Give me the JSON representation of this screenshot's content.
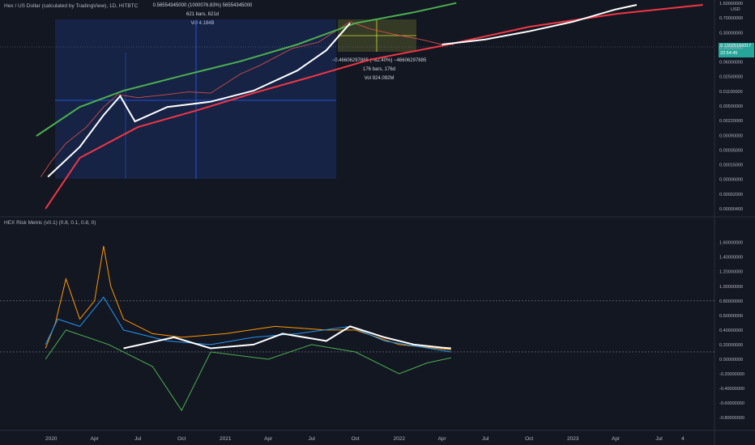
{
  "header": {
    "title": "Hex / US Dollar (calculated by TradingView), 1D, HITBTC",
    "indicator_title": "HEX Risk Metric (v0.1) (0.8, 0.1, 0.8, 0)",
    "currency": "USD"
  },
  "measure_long": {
    "line1": "0.56554345000 (1000076.83%) 56554345000",
    "line2": "621 bars, 621d",
    "line3": "Vol 4.184B"
  },
  "measure_short": {
    "line1": "−0.46606297885 (−82.40%) −46606297885",
    "line2": "176 bars, 176d",
    "line3": "Vol 924.092M"
  },
  "price_badge": {
    "price": "0.13025184317",
    "time": "22:54:45"
  },
  "colors": {
    "background": "#131722",
    "upper_band": "#4caf50",
    "lower_band": "#f23645",
    "trend_curve": "#ffffff",
    "measure_long": "#2962ff",
    "measure_short": "#cddc39",
    "price_badge": "#26a69a",
    "risk_orange": "#ff9800",
    "risk_blue": "#2196f3",
    "risk_green": "#4caf50",
    "risk_cyan": "#26c6da",
    "risk_yellow": "#cddc39"
  },
  "chart_data": [
    {
      "type": "line",
      "name": "price",
      "scale": "log",
      "x_axis_labels": [
        "2020",
        "Apr",
        "Jul",
        "Oct",
        "2021",
        "Apr",
        "Jul",
        "Oct",
        "2022",
        "Apr",
        "Jul",
        "Oct",
        "2023",
        "Apr",
        "Jul",
        "4"
      ],
      "y_tick_labels": [
        "1.60000000",
        "0.70000000",
        "0.30000000",
        "0.14000000",
        "0.06000000",
        "0.02500000",
        "0.01100000",
        "0.00500000",
        "0.00220000",
        "0.00090000",
        "0.00035000",
        "0.00015000",
        "0.00006000",
        "0.00002000",
        "0.00000400"
      ],
      "ylim": [
        4e-06,
        1.6
      ],
      "price_points": [
        {
          "x": "2019-12-10",
          "y": 3e-05
        },
        {
          "x": "2020-01-01",
          "y": 8e-05
        },
        {
          "x": "2020-02-01",
          "y": 0.00025
        },
        {
          "x": "2020-03-15",
          "y": 0.0007
        },
        {
          "x": "2020-04-20",
          "y": 0.0025
        },
        {
          "x": "2020-05-20",
          "y": 0.0055
        },
        {
          "x": "2020-07-01",
          "y": 0.0045
        },
        {
          "x": "2020-09-01",
          "y": 0.0055
        },
        {
          "x": "2020-10-15",
          "y": 0.0065
        },
        {
          "x": "2020-12-01",
          "y": 0.006
        },
        {
          "x": "2021-02-01",
          "y": 0.02
        },
        {
          "x": "2021-03-15",
          "y": 0.035
        },
        {
          "x": "2021-05-20",
          "y": 0.1
        },
        {
          "x": "2021-07-15",
          "y": 0.15
        },
        {
          "x": "2021-09-20",
          "y": 0.55
        },
        {
          "x": "2021-11-01",
          "y": 0.35
        },
        {
          "x": "2021-12-20",
          "y": 0.25
        },
        {
          "x": "2022-02-15",
          "y": 0.18
        },
        {
          "x": "2022-04-01",
          "y": 0.13
        },
        {
          "x": "2022-04-25",
          "y": 0.13
        }
      ],
      "upper_band": [
        {
          "x": "2019-12-01",
          "y": 0.0004
        },
        {
          "x": "2020-03-01",
          "y": 0.0025
        },
        {
          "x": "2020-06-01",
          "y": 0.007
        },
        {
          "x": "2020-10-01",
          "y": 0.018
        },
        {
          "x": "2021-02-01",
          "y": 0.045
        },
        {
          "x": "2021-06-01",
          "y": 0.13
        },
        {
          "x": "2021-10-01",
          "y": 0.5
        },
        {
          "x": "2022-02-01",
          "y": 1.0
        },
        {
          "x": "2022-05-01",
          "y": 1.8
        }
      ],
      "lower_band": [
        {
          "x": "2019-12-20",
          "y": 4e-06
        },
        {
          "x": "2020-03-01",
          "y": 0.0001
        },
        {
          "x": "2020-07-01",
          "y": 0.0007
        },
        {
          "x": "2020-11-01",
          "y": 0.002
        },
        {
          "x": "2021-03-01",
          "y": 0.006
        },
        {
          "x": "2021-07-01",
          "y": 0.017
        },
        {
          "x": "2021-11-01",
          "y": 0.05
        },
        {
          "x": "2022-04-01",
          "y": 0.12
        },
        {
          "x": "2022-10-01",
          "y": 0.4
        },
        {
          "x": "2023-04-01",
          "y": 0.9
        },
        {
          "x": "2023-10-01",
          "y": 1.6
        }
      ],
      "trend_curve": [
        {
          "x": "2019-12-25",
          "y": 3e-05
        },
        {
          "x": "2020-03-01",
          "y": 0.0002
        },
        {
          "x": "2020-04-20",
          "y": 0.0015
        },
        {
          "x": "2020-05-25",
          "y": 0.005
        },
        {
          "x": "2020-06-25",
          "y": 0.001
        },
        {
          "x": "2020-09-01",
          "y": 0.0025
        },
        {
          "x": "2020-12-01",
          "y": 0.0035
        },
        {
          "x": "2021-03-01",
          "y": 0.007
        },
        {
          "x": "2021-06-01",
          "y": 0.025
        },
        {
          "x": "2021-08-01",
          "y": 0.09
        },
        {
          "x": "2021-09-20",
          "y": 0.5
        }
      ],
      "trend_curve_2": [
        {
          "x": "2022-04-01",
          "y": 0.13
        },
        {
          "x": "2022-07-01",
          "y": 0.18
        },
        {
          "x": "2022-10-01",
          "y": 0.3
        },
        {
          "x": "2023-01-01",
          "y": 0.55
        },
        {
          "x": "2023-04-01",
          "y": 1.2
        },
        {
          "x": "2023-05-15",
          "y": 1.6
        }
      ]
    },
    {
      "type": "line",
      "name": "risk_metric",
      "y_tick_labels": [
        "1.60000000",
        "1.40000000",
        "1.20000000",
        "1.00000000",
        "0.80000000",
        "0.60000000",
        "0.40000000",
        "0.20000000",
        "0.00000000",
        "-0.20000000",
        "-0.40000000",
        "-0.60000000",
        "-0.80000000"
      ],
      "ylim": [
        -0.92,
        1.74
      ],
      "hlines": [
        0.8,
        0.1
      ],
      "series": [
        {
          "color": "#ff9800",
          "points": [
            {
              "x": "2019-12-20",
              "y": 0.15
            },
            {
              "x": "2020-01-10",
              "y": 0.5
            },
            {
              "x": "2020-02-01",
              "y": 1.1
            },
            {
              "x": "2020-03-01",
              "y": 0.55
            },
            {
              "x": "2020-04-01",
              "y": 0.8
            },
            {
              "x": "2020-04-20",
              "y": 1.55
            },
            {
              "x": "2020-05-05",
              "y": 1.0
            },
            {
              "x": "2020-06-01",
              "y": 0.55
            },
            {
              "x": "2020-08-01",
              "y": 0.35
            },
            {
              "x": "2020-10-01",
              "y": 0.3
            },
            {
              "x": "2021-01-01",
              "y": 0.35
            },
            {
              "x": "2021-04-15",
              "y": 0.45
            },
            {
              "x": "2021-08-01",
              "y": 0.4
            },
            {
              "x": "2021-10-01",
              "y": 0.4
            },
            {
              "x": "2022-01-01",
              "y": 0.2
            },
            {
              "x": "2022-04-20",
              "y": 0.13
            }
          ]
        },
        {
          "color": "#2196f3",
          "points": [
            {
              "x": "2019-12-20",
              "y": 0.2
            },
            {
              "x": "2020-01-15",
              "y": 0.55
            },
            {
              "x": "2020-03-01",
              "y": 0.45
            },
            {
              "x": "2020-04-20",
              "y": 0.85
            },
            {
              "x": "2020-06-01",
              "y": 0.4
            },
            {
              "x": "2020-09-01",
              "y": 0.25
            },
            {
              "x": "2020-12-01",
              "y": 0.2
            },
            {
              "x": "2021-03-01",
              "y": 0.3
            },
            {
              "x": "2021-06-01",
              "y": 0.35
            },
            {
              "x": "2021-09-20",
              "y": 0.45
            },
            {
              "x": "2021-12-01",
              "y": 0.25
            },
            {
              "x": "2022-04-20",
              "y": 0.1
            }
          ]
        },
        {
          "color": "#4caf50",
          "points": [
            {
              "x": "2019-12-20",
              "y": 0.0
            },
            {
              "x": "2020-02-01",
              "y": 0.4
            },
            {
              "x": "2020-05-01",
              "y": 0.2
            },
            {
              "x": "2020-08-01",
              "y": -0.1
            },
            {
              "x": "2020-10-01",
              "y": -0.7
            },
            {
              "x": "2020-12-01",
              "y": 0.1
            },
            {
              "x": "2021-04-01",
              "y": 0.0
            },
            {
              "x": "2021-07-01",
              "y": 0.2
            },
            {
              "x": "2021-10-01",
              "y": 0.1
            },
            {
              "x": "2022-01-01",
              "y": -0.2
            },
            {
              "x": "2022-03-01",
              "y": -0.05
            },
            {
              "x": "2022-04-20",
              "y": 0.02
            }
          ]
        },
        {
          "color": "#ffffff",
          "points": [
            {
              "x": "2020-06-01",
              "y": 0.15
            },
            {
              "x": "2020-09-15",
              "y": 0.3
            },
            {
              "x": "2020-12-01",
              "y": 0.15
            },
            {
              "x": "2021-03-01",
              "y": 0.2
            },
            {
              "x": "2021-05-01",
              "y": 0.35
            },
            {
              "x": "2021-08-01",
              "y": 0.25
            },
            {
              "x": "2021-09-20",
              "y": 0.45
            },
            {
              "x": "2021-12-01",
              "y": 0.3
            },
            {
              "x": "2022-02-01",
              "y": 0.2
            },
            {
              "x": "2022-04-01",
              "y": 0.16
            },
            {
              "x": "2022-04-20",
              "y": 0.15
            }
          ]
        }
      ]
    }
  ]
}
